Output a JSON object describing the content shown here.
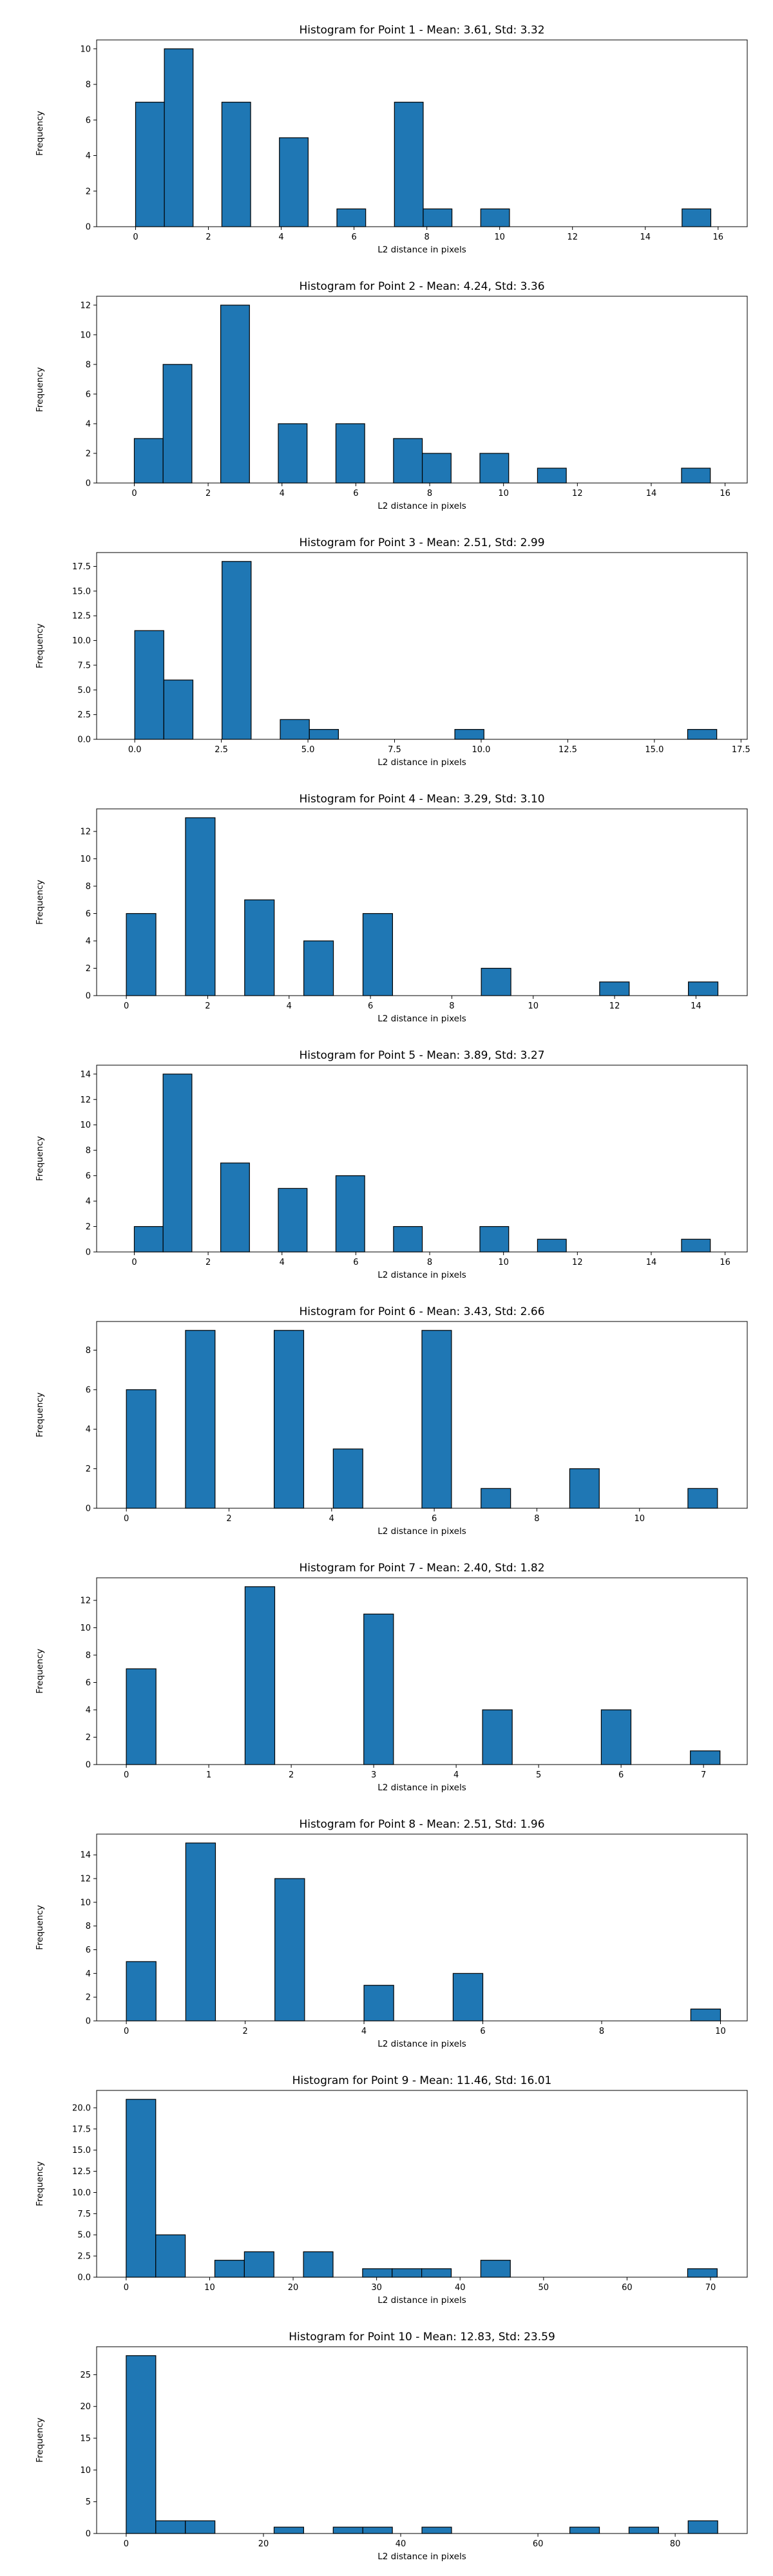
{
  "chart_data": [
    {
      "type": "bar",
      "title": "Histogram for Point 1 - Mean: 3.61, Std: 3.32",
      "xlabel": "L2 distance in pixels",
      "ylabel": "Frequency",
      "xlim": [
        -1.07,
        16.8
      ],
      "ylim": [
        0,
        10.5
      ],
      "xticks": [
        0,
        2,
        4,
        6,
        8,
        10,
        12,
        14,
        16
      ],
      "xtick_labels": [
        "0",
        "2",
        "4",
        "6",
        "8",
        "10",
        "12",
        "14",
        "16"
      ],
      "yticks": [
        0,
        2,
        4,
        6,
        8,
        10
      ],
      "ytick_labels": [
        "0",
        "2",
        "4",
        "6",
        "8",
        "10"
      ],
      "bin_edges": [
        0.0,
        0.79,
        1.58,
        2.37,
        3.16,
        3.95,
        4.74,
        5.53,
        6.32,
        7.11,
        7.9,
        8.69,
        9.48,
        10.27,
        11.06,
        11.85,
        12.64,
        13.43,
        14.22,
        15.01,
        15.8
      ],
      "counts": [
        7,
        10,
        0,
        7,
        0,
        5,
        0,
        1,
        0,
        7,
        1,
        0,
        1,
        0,
        0,
        0,
        0,
        0,
        0,
        1
      ],
      "color": "#1f77b4",
      "edgecolor": "#000000"
    },
    {
      "type": "bar",
      "title": "Histogram for Point 2 - Mean: 4.24, Std: 3.36",
      "xlabel": "L2 distance in pixels",
      "ylabel": "Frequency",
      "xlim": [
        -1.02,
        16.6
      ],
      "ylim": [
        0,
        12.6
      ],
      "xticks": [
        0,
        2,
        4,
        6,
        8,
        10,
        12,
        14,
        16
      ],
      "xtick_labels": [
        "0",
        "2",
        "4",
        "6",
        "8",
        "10",
        "12",
        "14",
        "16"
      ],
      "yticks": [
        0,
        2,
        4,
        6,
        8,
        10,
        12
      ],
      "ytick_labels": [
        "0",
        "2",
        "4",
        "6",
        "8",
        "10",
        "12"
      ],
      "bin_edges": [
        0.0,
        0.78,
        1.56,
        2.34,
        3.12,
        3.9,
        4.68,
        5.46,
        6.24,
        7.02,
        7.8,
        8.58,
        9.36,
        10.14,
        10.92,
        11.7,
        12.48,
        13.26,
        14.04,
        14.82,
        15.6
      ],
      "counts": [
        3,
        8,
        0,
        12,
        0,
        4,
        0,
        4,
        0,
        3,
        2,
        0,
        2,
        0,
        1,
        0,
        0,
        0,
        0,
        1
      ],
      "color": "#1f77b4",
      "edgecolor": "#000000"
    },
    {
      "type": "bar",
      "title": "Histogram for Point 3 - Mean: 2.51, Std: 2.99",
      "xlabel": "L2 distance in pixels",
      "ylabel": "Frequency",
      "xlim": [
        -1.1,
        17.68
      ],
      "ylim": [
        0,
        18.9
      ],
      "xticks": [
        0.0,
        2.5,
        5.0,
        7.5,
        10.0,
        12.5,
        15.0,
        17.5
      ],
      "xtick_labels": [
        "0.0",
        "2.5",
        "5.0",
        "7.5",
        "10.0",
        "12.5",
        "15.0",
        "17.5"
      ],
      "yticks": [
        0.0,
        2.5,
        5.0,
        7.5,
        10.0,
        12.5,
        15.0,
        17.5
      ],
      "ytick_labels": [
        "0.0",
        "2.5",
        "5.0",
        "7.5",
        "10.0",
        "12.5",
        "15.0",
        "17.5"
      ],
      "bin_edges": [
        0.0,
        0.84,
        1.68,
        2.52,
        3.36,
        4.2,
        5.04,
        5.88,
        6.72,
        7.56,
        8.4,
        9.24,
        10.08,
        10.92,
        11.76,
        12.6,
        13.44,
        14.28,
        15.12,
        15.96,
        16.8
      ],
      "counts": [
        11,
        6,
        0,
        18,
        0,
        2,
        1,
        0,
        0,
        0,
        0,
        1,
        0,
        0,
        0,
        0,
        0,
        0,
        0,
        1
      ],
      "color": "#1f77b4",
      "edgecolor": "#000000"
    },
    {
      "type": "bar",
      "title": "Histogram for Point 4 - Mean: 3.29, Std: 3.10",
      "xlabel": "L2 distance in pixels",
      "ylabel": "Frequency",
      "xlim": [
        -0.73,
        15.26
      ],
      "ylim": [
        0,
        13.65
      ],
      "xticks": [
        0,
        2,
        4,
        6,
        8,
        10,
        12,
        14
      ],
      "xtick_labels": [
        "0",
        "2",
        "4",
        "6",
        "8",
        "10",
        "12",
        "14"
      ],
      "yticks": [
        0,
        2,
        4,
        6,
        8,
        10,
        12
      ],
      "ytick_labels": [
        "0",
        "2",
        "4",
        "6",
        "8",
        "10",
        "12"
      ],
      "bin_edges": [
        0.0,
        0.727,
        1.454,
        2.181,
        2.908,
        3.635,
        4.362,
        5.089,
        5.816,
        6.543,
        7.27,
        7.997,
        8.724,
        9.451,
        10.178,
        10.905,
        11.632,
        12.359,
        13.086,
        13.813,
        14.54
      ],
      "counts": [
        6,
        0,
        13,
        0,
        7,
        0,
        4,
        0,
        6,
        0,
        0,
        0,
        2,
        0,
        0,
        0,
        1,
        0,
        0,
        1
      ],
      "color": "#1f77b4",
      "edgecolor": "#000000"
    },
    {
      "type": "bar",
      "title": "Histogram for Point 5 - Mean: 3.89, Std: 3.27",
      "xlabel": "L2 distance in pixels",
      "ylabel": "Frequency",
      "xlim": [
        -1.02,
        16.6
      ],
      "ylim": [
        0,
        14.7
      ],
      "xticks": [
        0,
        2,
        4,
        6,
        8,
        10,
        12,
        14,
        16
      ],
      "xtick_labels": [
        "0",
        "2",
        "4",
        "6",
        "8",
        "10",
        "12",
        "14",
        "16"
      ],
      "yticks": [
        0,
        2,
        4,
        6,
        8,
        10,
        12,
        14
      ],
      "ytick_labels": [
        "0",
        "2",
        "4",
        "6",
        "8",
        "10",
        "12",
        "14"
      ],
      "bin_edges": [
        0.0,
        0.78,
        1.56,
        2.34,
        3.12,
        3.9,
        4.68,
        5.46,
        6.24,
        7.02,
        7.8,
        8.58,
        9.36,
        10.14,
        10.92,
        11.7,
        12.48,
        13.26,
        14.04,
        14.82,
        15.6
      ],
      "counts": [
        2,
        14,
        0,
        7,
        0,
        5,
        0,
        6,
        0,
        2,
        0,
        0,
        2,
        0,
        1,
        0,
        0,
        0,
        0,
        1
      ],
      "color": "#1f77b4",
      "edgecolor": "#000000"
    },
    {
      "type": "bar",
      "title": "Histogram for Point 6 - Mean: 3.43, Std: 2.66",
      "xlabel": "L2 distance in pixels",
      "ylabel": "Frequency",
      "xlim": [
        -0.58,
        12.1
      ],
      "ylim": [
        0,
        9.45
      ],
      "xticks": [
        0,
        2,
        4,
        6,
        8,
        10
      ],
      "xtick_labels": [
        "0",
        "2",
        "4",
        "6",
        "8",
        "10"
      ],
      "yticks": [
        0,
        2,
        4,
        6,
        8
      ],
      "ytick_labels": [
        "0",
        "2",
        "4",
        "6",
        "8"
      ],
      "bin_edges": [
        0.0,
        0.576,
        1.152,
        1.728,
        2.304,
        2.88,
        3.456,
        4.032,
        4.608,
        5.184,
        5.76,
        6.336,
        6.912,
        7.488,
        8.064,
        8.64,
        9.216,
        9.792,
        10.368,
        10.944,
        11.52
      ],
      "counts": [
        6,
        0,
        9,
        0,
        0,
        9,
        0,
        3,
        0,
        0,
        9,
        0,
        1,
        0,
        0,
        2,
        0,
        0,
        0,
        1
      ],
      "color": "#1f77b4",
      "edgecolor": "#000000"
    },
    {
      "type": "bar",
      "title": "Histogram for Point 7 - Mean: 2.40, Std: 1.82",
      "xlabel": "L2 distance in pixels",
      "ylabel": "Frequency",
      "xlim": [
        -0.36,
        7.53
      ],
      "ylim": [
        0,
        13.65
      ],
      "xticks": [
        0,
        1,
        2,
        3,
        4,
        5,
        6,
        7
      ],
      "xtick_labels": [
        "0",
        "1",
        "2",
        "3",
        "4",
        "5",
        "6",
        "7"
      ],
      "yticks": [
        0,
        2,
        4,
        6,
        8,
        10,
        12
      ],
      "ytick_labels": [
        "0",
        "2",
        "4",
        "6",
        "8",
        "10",
        "12"
      ],
      "bin_edges": [
        0.0,
        0.36,
        0.72,
        1.08,
        1.44,
        1.8,
        2.16,
        2.52,
        2.88,
        3.24,
        3.6,
        3.96,
        4.32,
        4.68,
        5.04,
        5.4,
        5.76,
        6.12,
        6.48,
        6.84,
        7.2
      ],
      "counts": [
        7,
        0,
        0,
        0,
        13,
        0,
        0,
        0,
        11,
        0,
        0,
        0,
        4,
        0,
        0,
        0,
        4,
        0,
        0,
        1
      ],
      "color": "#1f77b4",
      "edgecolor": "#000000"
    },
    {
      "type": "bar",
      "title": "Histogram for Point 8 - Mean: 2.51, Std: 1.96",
      "xlabel": "L2 distance in pixels",
      "ylabel": "Frequency",
      "xlim": [
        -0.5,
        10.45
      ],
      "ylim": [
        0,
        15.75
      ],
      "xticks": [
        0,
        2,
        4,
        6,
        8,
        10
      ],
      "xtick_labels": [
        "0",
        "2",
        "4",
        "6",
        "8",
        "10"
      ],
      "yticks": [
        0,
        2,
        4,
        6,
        8,
        10,
        12,
        14
      ],
      "ytick_labels": [
        "0",
        "2",
        "4",
        "6",
        "8",
        "10",
        "12",
        "14"
      ],
      "bin_edges": [
        0.0,
        0.5,
        1.0,
        1.5,
        2.0,
        2.5,
        3.0,
        3.5,
        4.0,
        4.5,
        5.0,
        5.5,
        6.0,
        6.5,
        7.0,
        7.5,
        8.0,
        8.5,
        9.0,
        9.5,
        10.0
      ],
      "counts": [
        5,
        0,
        15,
        0,
        0,
        12,
        0,
        0,
        3,
        0,
        0,
        4,
        0,
        0,
        0,
        0,
        0,
        0,
        0,
        1
      ],
      "color": "#1f77b4",
      "edgecolor": "#000000"
    },
    {
      "type": "bar",
      "title": "Histogram for Point 9 - Mean: 11.46, Std: 16.01",
      "xlabel": "L2 distance in pixels",
      "ylabel": "Frequency",
      "xlim": [
        -3.54,
        74.4
      ],
      "ylim": [
        0,
        22.05
      ],
      "xticks": [
        0,
        10,
        20,
        30,
        40,
        50,
        60,
        70
      ],
      "xtick_labels": [
        "0",
        "10",
        "20",
        "30",
        "40",
        "50",
        "60",
        "70"
      ],
      "yticks": [
        0.0,
        2.5,
        5.0,
        7.5,
        10.0,
        12.5,
        15.0,
        17.5,
        20.0
      ],
      "ytick_labels": [
        "0.0",
        "2.5",
        "5.0",
        "7.5",
        "10.0",
        "12.5",
        "15.0",
        "17.5",
        "20.0"
      ],
      "bin_edges": [
        0.0,
        3.54,
        7.08,
        10.62,
        14.16,
        17.7,
        21.24,
        24.78,
        28.32,
        31.86,
        35.4,
        38.94,
        42.48,
        46.02,
        49.56,
        53.1,
        56.64,
        60.18,
        63.72,
        67.26,
        70.8
      ],
      "counts": [
        21,
        5,
        0,
        2,
        3,
        0,
        3,
        0,
        1,
        1,
        1,
        0,
        2,
        0,
        0,
        0,
        0,
        0,
        0,
        1
      ],
      "color": "#1f77b4",
      "edgecolor": "#000000"
    },
    {
      "type": "bar",
      "title": "Histogram for Point 10 - Mean: 12.83, Std: 23.59",
      "xlabel": "L2 distance in pixels",
      "ylabel": "Frequency",
      "xlim": [
        -4.31,
        90.5
      ],
      "ylim": [
        0,
        29.4
      ],
      "xticks": [
        0,
        20,
        40,
        60,
        80
      ],
      "xtick_labels": [
        "0",
        "20",
        "40",
        "60",
        "80"
      ],
      "yticks": [
        0,
        5,
        10,
        15,
        20,
        25
      ],
      "ytick_labels": [
        "0",
        "5",
        "10",
        "15",
        "20",
        "25"
      ],
      "bin_edges": [
        0.0,
        4.31,
        8.62,
        12.93,
        17.24,
        21.55,
        25.86,
        30.17,
        34.48,
        38.79,
        43.1,
        47.41,
        51.72,
        56.03,
        60.34,
        64.65,
        68.96,
        73.27,
        77.58,
        81.89,
        86.2
      ],
      "counts": [
        28,
        2,
        2,
        0,
        0,
        1,
        0,
        1,
        1,
        0,
        1,
        0,
        0,
        0,
        0,
        1,
        0,
        1,
        0,
        2
      ],
      "color": "#1f77b4",
      "edgecolor": "#000000"
    }
  ]
}
